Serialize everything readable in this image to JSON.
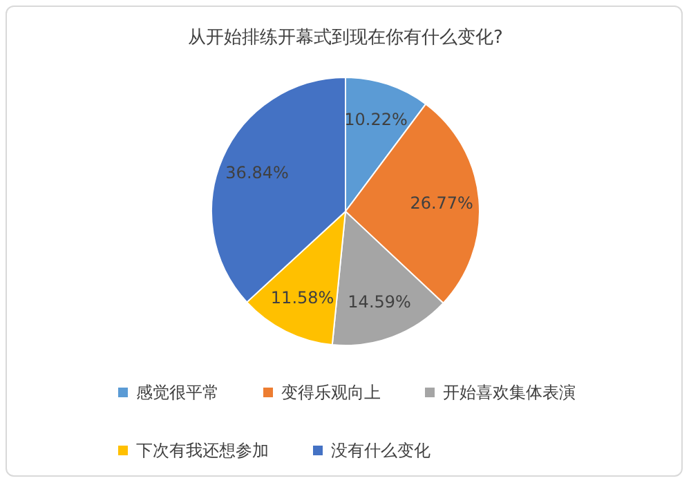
{
  "chart_data": {
    "type": "pie",
    "title": "从开始排练开幕式到现在你有什么变化?",
    "categories": [
      "感觉很平常",
      "变得乐观向上",
      "开始喜欢集体表演",
      "下次有我还想参加",
      "没有什么变化"
    ],
    "values": [
      10.22,
      26.77,
      14.59,
      11.58,
      36.84
    ],
    "value_labels": [
      "10.22%",
      "26.77%",
      "14.59%",
      "11.58%",
      "36.84%"
    ],
    "colors": [
      "#5b9bd5",
      "#ed7d31",
      "#a5a5a5",
      "#ffc000",
      "#4472c4"
    ],
    "legend": "bottom"
  }
}
